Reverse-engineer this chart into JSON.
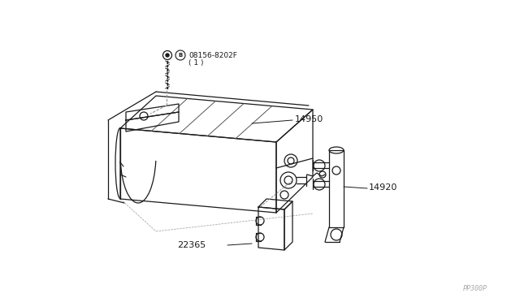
{
  "bg_color": "#ffffff",
  "line_color": "#1a1a1a",
  "watermark_text": "PP300P",
  "watermark_color": "#aaaaaa",
  "parts": {
    "bolt_label_b": "Ⓑ 08156-8202F",
    "bolt_label_2": "  ( 1 )",
    "main_canister_label": "14950",
    "valve_label": "14920",
    "bracket_label": "22365"
  },
  "fig_width": 6.4,
  "fig_height": 3.72,
  "dpi": 100
}
